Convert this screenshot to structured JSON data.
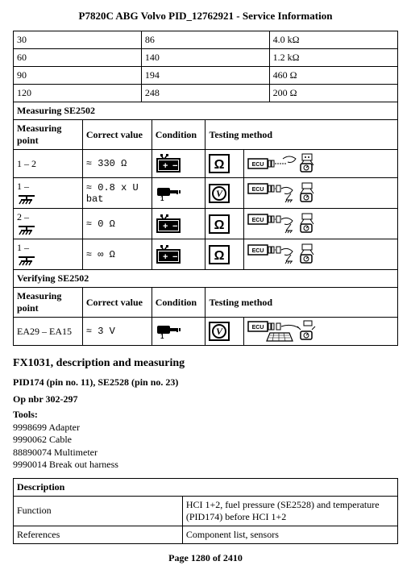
{
  "header": "P7820C ABG Volvo PID_12762921 - Service Information",
  "footer": "Page 1280 of 2410",
  "resistance_table": {
    "rows": [
      [
        "30",
        "86",
        "4.0 kΩ"
      ],
      [
        "60",
        "140",
        "1.2 kΩ"
      ],
      [
        "90",
        "194",
        "460 Ω"
      ],
      [
        "120",
        "248",
        "200 Ω"
      ]
    ]
  },
  "measuring_section": {
    "title": "Measuring SE2502",
    "headers": [
      "Measuring point",
      "Correct value",
      "Condition",
      "Testing method"
    ],
    "rows": [
      {
        "mp": "1 – 2",
        "mp_icon": "",
        "cv": "≈ 330 Ω",
        "cond": "battery",
        "tsym": "ohm"
      },
      {
        "mp": "1 –",
        "mp_icon": "ground",
        "cv": "≈ 0.8 x U bat",
        "cond": "key",
        "tsym": "volt"
      },
      {
        "mp": "2 –",
        "mp_icon": "ground",
        "cv": "≈ 0 Ω",
        "cond": "battery",
        "tsym": "ohm"
      },
      {
        "mp": "1 –",
        "mp_icon": "ground",
        "cv": "≈ ∞ Ω",
        "cond": "battery",
        "tsym": "ohm"
      }
    ]
  },
  "verifying_section": {
    "title": "Verifying SE2502",
    "headers": [
      "Measuring point",
      "Correct value",
      "Condition",
      "Testing method"
    ],
    "rows": [
      {
        "mp": "EA29 – EA15",
        "cv": "≈ 3 V",
        "cond": "key",
        "tsym": "volt"
      }
    ]
  },
  "fx_section": {
    "title": "FX1031, description and measuring",
    "pid_line": "PID174 (pin no. 11), SE2528 (pin no. 23)",
    "op_line": "Op nbr 302-297",
    "tools_label": "Tools:",
    "tools": [
      "9998699 Adapter",
      "9990062 Cable",
      "88890074 Multimeter",
      "9990014 Break out harness"
    ]
  },
  "desc_table": {
    "header": "Description",
    "rows": [
      [
        "Function",
        "HCI 1+2, fuel pressure (SE2528) and temperature (PID174) before HCI 1+2"
      ],
      [
        "References",
        "Component list, sensors"
      ]
    ]
  },
  "style": {
    "col_widths_top": [
      "33.3%",
      "33.3%",
      "33.4%"
    ],
    "col_widths_meas": [
      "18%",
      "18%",
      "14%",
      "10%",
      "40%"
    ],
    "col_widths_desc": [
      "44%",
      "56%"
    ]
  }
}
